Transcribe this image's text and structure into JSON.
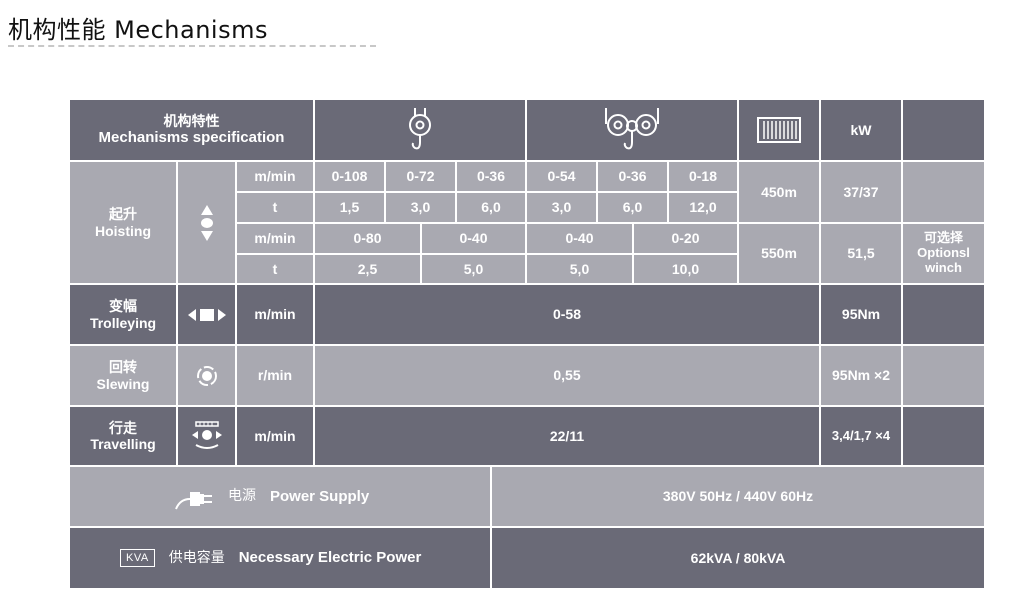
{
  "page": {
    "title": "机构性能 Mechanisms"
  },
  "header": {
    "spec_zh": "机构特性",
    "spec_en": "Mechanisms specification",
    "kw": "kW",
    "icons": [
      "single-hook-hoist-icon",
      "double-hook-hoist-icon",
      "wire-rope-drum-icon"
    ]
  },
  "hoisting": {
    "label_zh": "起升",
    "label_en": "Hoisting",
    "icon": "hoisting-arrows-icon",
    "row1": {
      "unit": "m/min",
      "values": [
        "0-108",
        "0-72",
        "0-36",
        "0-54",
        "0-36",
        "0-18"
      ]
    },
    "row2": {
      "unit": "t",
      "values": [
        "1,5",
        "3,0",
        "6,0",
        "3,0",
        "6,0",
        "12,0"
      ]
    },
    "row3": {
      "unit": "m/min",
      "values": [
        "0-80",
        "0-40",
        "0-40",
        "0-20"
      ]
    },
    "row4": {
      "unit": "t",
      "values": [
        "2,5",
        "5,0",
        "5,0",
        "10,0"
      ]
    },
    "rope_a": "450m",
    "kw_a": "37/37",
    "rope_b": "550m",
    "kw_b": "51,5",
    "option_line1": "可选择",
    "option_line2": "Optionsl",
    "option_line3": "winch"
  },
  "trolleying": {
    "label_zh": "变幅",
    "label_en": "Trolleying",
    "icon": "trolley-arrows-icon",
    "unit": "m/min",
    "value": "0-58",
    "power": "95Nm"
  },
  "slewing": {
    "label_zh": "回转",
    "label_en": "Slewing",
    "icon": "slewing-rotation-icon",
    "unit": "r/min",
    "value": "0,55",
    "power": "95Nm ×2"
  },
  "travelling": {
    "label_zh": "行走",
    "label_en": "Travelling",
    "icon": "travelling-rail-icon",
    "unit": "m/min",
    "value": "22/11",
    "power": "3,4/1,7 ×4"
  },
  "power_supply": {
    "icon": "power-plug-icon",
    "label_zh": "电源",
    "label_en": "Power Supply",
    "value": "380V 50Hz / 440V 60Hz"
  },
  "electric_power": {
    "icon_text": "KVA",
    "label_zh": "供电容量",
    "label_en": "Necessary Electric Power",
    "value": "62kVA / 80kVA"
  },
  "colors": {
    "dark_cell": "#6a6a77",
    "light_cell": "#a9a9b1",
    "text": "#ffffff"
  }
}
